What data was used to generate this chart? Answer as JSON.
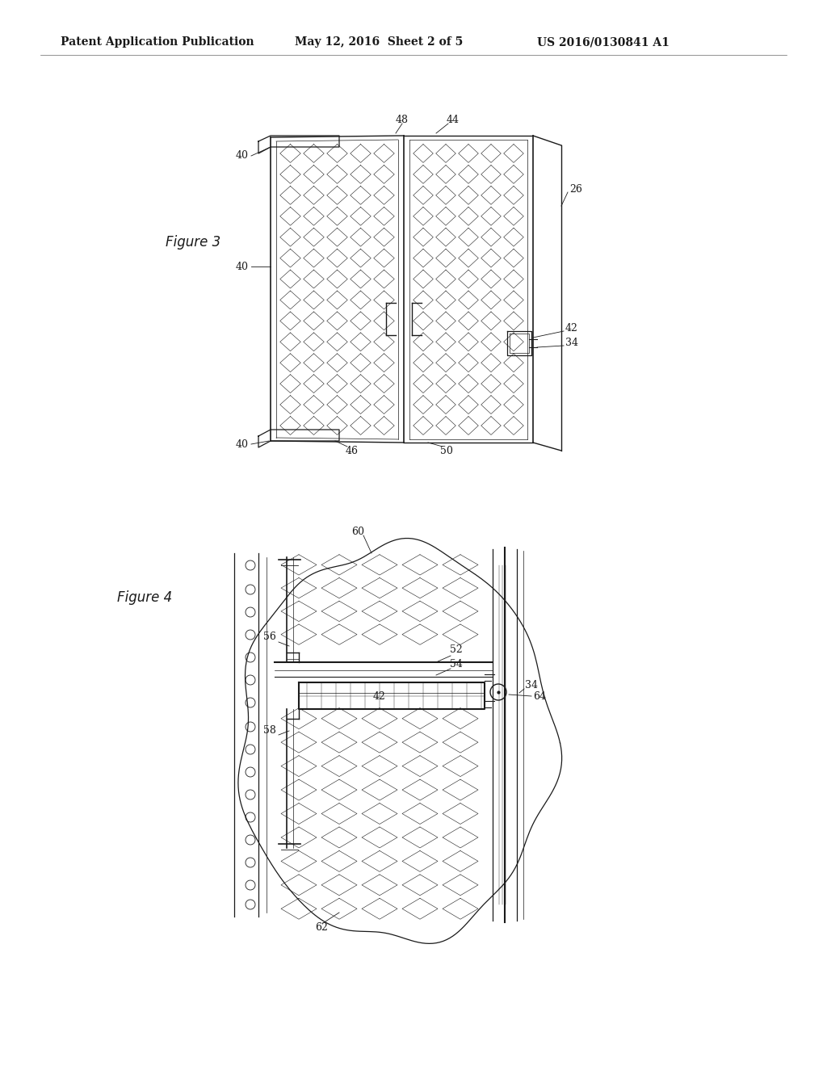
{
  "bg_color": "#ffffff",
  "header_left": "Patent Application Publication",
  "header_center": "May 12, 2016  Sheet 2 of 5",
  "header_right": "US 2016/0130841 A1",
  "fig3_label": "Figure 3",
  "fig4_label": "Figure 4",
  "line_color": "#1a1a1a",
  "text_color": "#1a1a1a",
  "header_fontsize": 10,
  "annotation_fontsize": 9,
  "label_fontsize": 11
}
